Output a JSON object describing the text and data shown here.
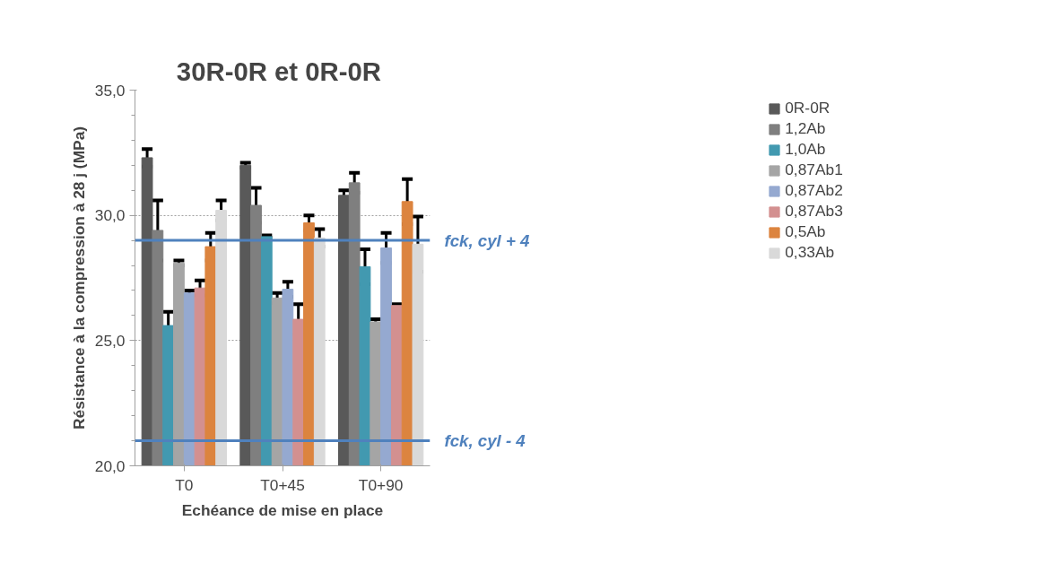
{
  "chart_data": {
    "type": "bar",
    "title": "30R-0R et  0R-0R",
    "xlabel": "Echéance de mise en place",
    "ylabel": "Résistance à la compression à 28 j (MPa)",
    "categories": [
      "T0",
      "T0+45",
      "T0+90"
    ],
    "series": [
      {
        "name": "0R-0R",
        "color": "#595959",
        "values": [
          32.3,
          32.0,
          30.8
        ],
        "errors": [
          0.35,
          0.1,
          0.2
        ]
      },
      {
        "name": "1,2Ab",
        "color": "#7f7f7f",
        "values": [
          29.4,
          30.4,
          31.3
        ],
        "errors": [
          1.2,
          0.7,
          0.4
        ]
      },
      {
        "name": "1,0Ab",
        "color": "#4299b0",
        "values": [
          25.6,
          29.15,
          27.95
        ],
        "errors": [
          0.55,
          0.05,
          0.7
        ]
      },
      {
        "name": "0,87Ab1",
        "color": "#a5a5a5",
        "values": [
          28.1,
          26.7,
          25.75
        ],
        "errors": [
          0.1,
          0.2,
          0.1
        ]
      },
      {
        "name": "0,87Ab2",
        "color": "#95a9d0",
        "values": [
          26.9,
          27.05,
          28.7
        ],
        "errors": [
          0.1,
          0.3,
          0.6
        ]
      },
      {
        "name": "0,87Ab3",
        "color": "#d39090",
        "values": [
          27.1,
          25.85,
          26.4
        ],
        "errors": [
          0.3,
          0.6,
          0.05
        ]
      },
      {
        "name": "0,5Ab",
        "color": "#dc843f",
        "values": [
          28.75,
          29.7,
          30.55
        ],
        "errors": [
          0.55,
          0.3,
          0.9
        ]
      },
      {
        "name": "0,33Ab",
        "color": "#d9d9d9",
        "values": [
          30.2,
          29.1,
          28.85
        ],
        "errors": [
          0.4,
          0.35,
          1.1
        ]
      }
    ],
    "ylim": [
      20,
      35
    ],
    "yticks": [
      {
        "value": 20,
        "label": "20,0"
      },
      {
        "value": 25,
        "label": "25,0"
      },
      {
        "value": 30,
        "label": "30,0"
      },
      {
        "value": 35,
        "label": "35,0"
      }
    ],
    "grid": "y",
    "legend": "top right",
    "ref_lines": [
      {
        "axis": "y",
        "value": 29,
        "label": "fck, cyl + 4",
        "color": "#4f81bd"
      },
      {
        "axis": "y",
        "value": 21,
        "label": "fck, cyl - 4",
        "color": "#4f81bd"
      }
    ]
  }
}
